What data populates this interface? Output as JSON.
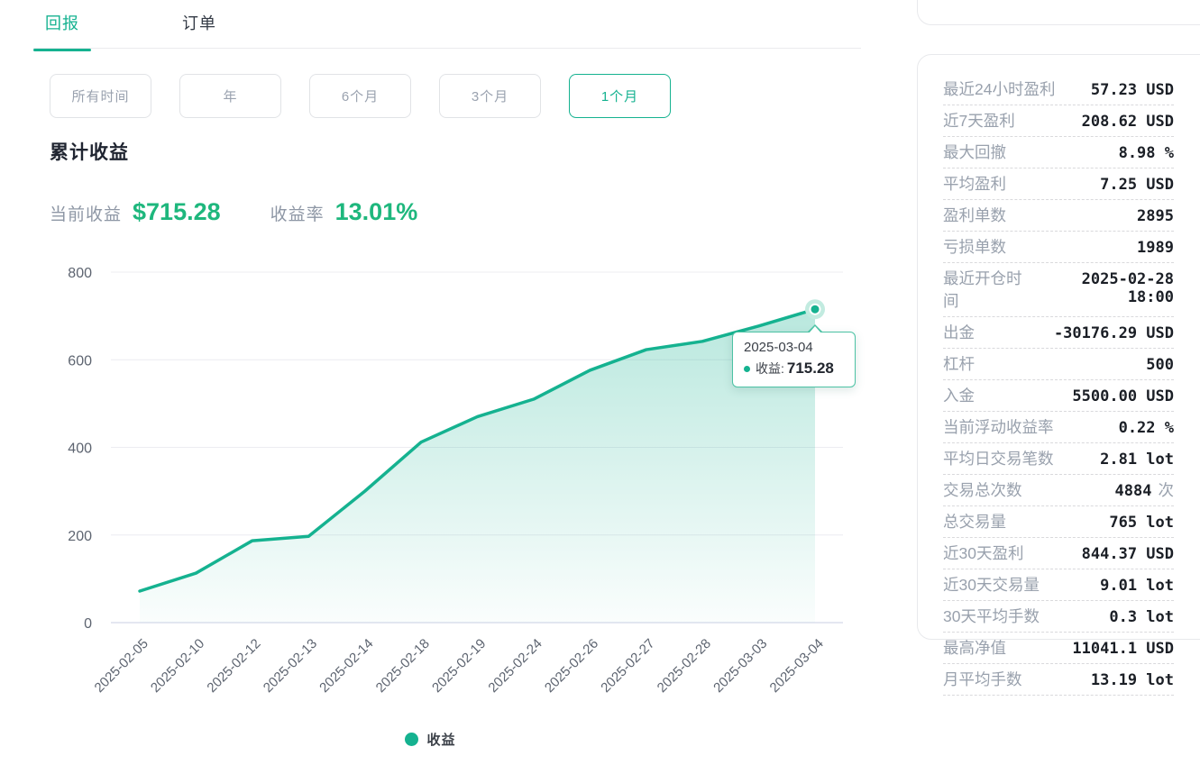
{
  "colors": {
    "accent": "#15b290",
    "green_text": "#1eb77d"
  },
  "tabs": {
    "active": "回报",
    "items": [
      {
        "label": "回报"
      },
      {
        "label": "订单"
      }
    ]
  },
  "filters": {
    "active": "1个月",
    "items": [
      "所有时间",
      "年",
      "6个月",
      "3个月",
      "1个月"
    ]
  },
  "section": {
    "title": "累计收益",
    "current_label": "当前收益",
    "current_value": "$715.28",
    "rate_label": "收益率",
    "rate_value": "13.01%"
  },
  "chart_data": {
    "type": "area",
    "title": "累计收益",
    "series": [
      {
        "name": "收益",
        "x": [
          "2025-02-05",
          "2025-02-10",
          "2025-02-12",
          "2025-02-13",
          "2025-02-14",
          "2025-02-18",
          "2025-02-19",
          "2025-02-24",
          "2025-02-26",
          "2025-02-27",
          "2025-02-28",
          "2025-03-03",
          "2025-03-04"
        ],
        "values": [
          72,
          113,
          187,
          197,
          300,
          412,
          470,
          510,
          576,
          623,
          642,
          677,
          715.28
        ]
      }
    ],
    "ylim": [
      0,
      800
    ],
    "yticks": [
      0,
      200,
      400,
      600,
      800
    ],
    "grid": true,
    "legend_position": "bottom",
    "highlight_point": {
      "x": "2025-03-04",
      "value": 715.28
    }
  },
  "tooltip": {
    "date": "2025-03-04",
    "series_label": "收益:",
    "value": "715.28"
  },
  "legend": {
    "label": "收益"
  },
  "stats": {
    "rows": [
      {
        "label": "最近24小时盈利",
        "value": "57.23 USD"
      },
      {
        "label": "近7天盈利",
        "value": "208.62 USD"
      },
      {
        "label": "最大回撤",
        "value": "8.98 %"
      },
      {
        "label": "平均盈利",
        "value": "7.25 USD"
      },
      {
        "label": "盈利单数",
        "value": "2895"
      },
      {
        "label": "亏损单数",
        "value": "1989"
      },
      {
        "label": "最近开仓时间",
        "value": "2025-02-28 18:00"
      },
      {
        "label": "出金",
        "value": "-30176.29 USD"
      },
      {
        "label": "杠杆",
        "value": "500"
      },
      {
        "label": "入金",
        "value": "5500.00 USD"
      },
      {
        "label": "当前浮动收益率",
        "value": "0.22 %"
      },
      {
        "label": "平均日交易笔数",
        "value": "2.81 lot"
      },
      {
        "label": "交易总次数",
        "value": "4884",
        "suffix": "次"
      },
      {
        "label": "总交易量",
        "value": "765 lot"
      },
      {
        "label": "近30天盈利",
        "value": "844.37 USD"
      },
      {
        "label": "近30天交易量",
        "value": "9.01 lot"
      },
      {
        "label": "30天平均手数",
        "value": "0.3 lot"
      },
      {
        "label": "最高净值",
        "value": "11041.1 USD"
      },
      {
        "label": "月平均手数",
        "value": "13.19 lot"
      }
    ]
  }
}
